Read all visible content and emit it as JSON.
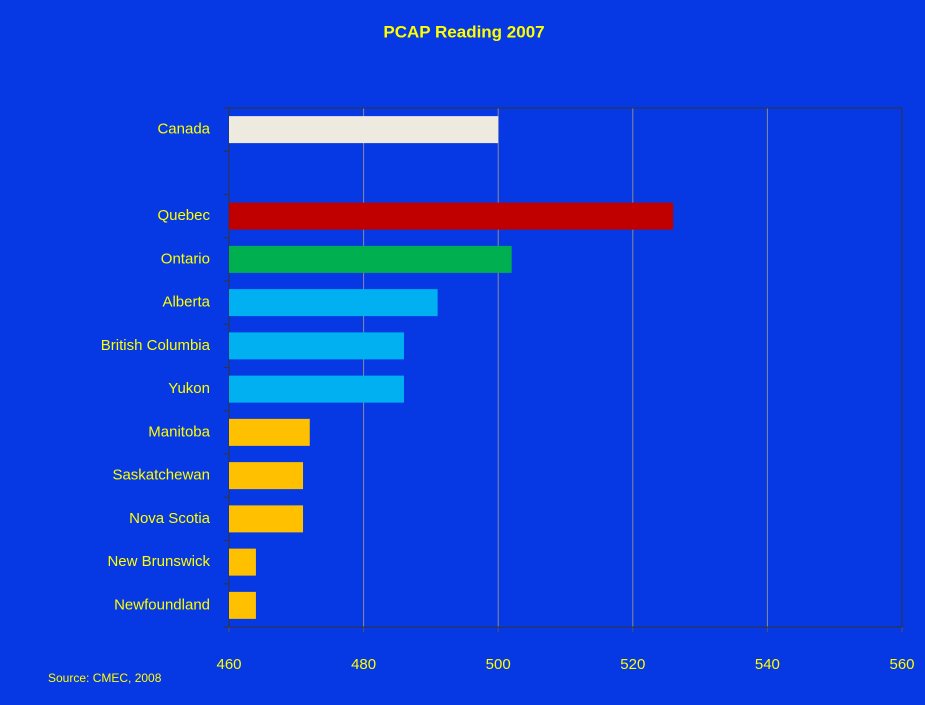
{
  "chart_data": {
    "type": "hbar",
    "title": "PCAP Reading 2007",
    "categories": [
      "Canada",
      null,
      "Quebec",
      "Ontario",
      "Alberta",
      "British Columbia",
      "Yukon",
      "Manitoba",
      "Saskatchewan",
      "Nova Scotia",
      "New Brunswick",
      "Newfoundland"
    ],
    "values": [
      500,
      null,
      526,
      502,
      491,
      486,
      486,
      472,
      471,
      471,
      464,
      464
    ],
    "colors": [
      "#eeeae0",
      null,
      "#c00000",
      "#00b050",
      "#00b0f0",
      "#00b0f0",
      "#00b0f0",
      "#ffc000",
      "#ffc000",
      "#ffc000",
      "#ffc000",
      "#ffc000"
    ],
    "xlim": [
      460,
      560
    ],
    "xticks": [
      460,
      480,
      500,
      520,
      540,
      560
    ],
    "grid": true,
    "source": "Source: CMEC, 2008"
  }
}
